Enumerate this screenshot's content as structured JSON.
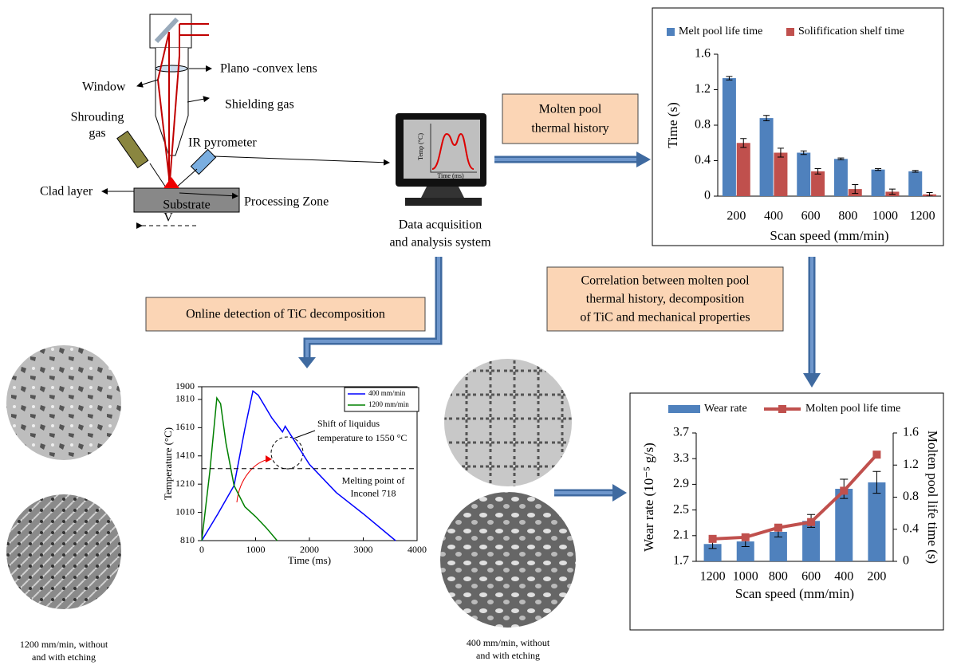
{
  "diagram": {
    "setup": {
      "lens": "Plano -convex lens",
      "window": "Window",
      "shielding_gas": "Shielding gas",
      "shrouding_gas": [
        "Shrouding",
        "gas"
      ],
      "pyrometer": "IR pyrometer",
      "clad_layer": "Clad layer",
      "processing_zone": "Processing Zone",
      "substrate": "Substrate",
      "velocity": "V"
    },
    "monitor": {
      "y_label": "Temp (°C)",
      "x_label": "Time (ms)",
      "caption": [
        "Data acquisition",
        "and analysis system"
      ]
    },
    "boxes": {
      "thermal_history": [
        "Molten pool",
        "thermal history"
      ],
      "online_detection": "Online detection of TiC decomposition",
      "correlation": [
        "Correlation between molten pool",
        "thermal history, decomposition",
        "of TiC and mechanical properties"
      ]
    },
    "captions": {
      "left": [
        "1200 mm/min, without",
        "and with etching"
      ],
      "right": [
        "400 mm/min, without",
        "and with etching"
      ]
    }
  },
  "chart_data": [
    {
      "type": "bar",
      "x_label": "Scan speed (mm/min)",
      "y_label": "Time (s)",
      "categories": [
        "200",
        "400",
        "600",
        "800",
        "1000",
        "1200"
      ],
      "series": [
        {
          "name": "Melt pool life time",
          "color": "#4f81bd",
          "values": [
            1.33,
            0.88,
            0.49,
            0.42,
            0.3,
            0.28
          ],
          "errors": [
            0.02,
            0.03,
            0.02,
            0.01,
            0.01,
            0.01
          ]
        },
        {
          "name": "Solifification shelf time",
          "color": "#c0504d",
          "values": [
            0.6,
            0.49,
            0.28,
            0.08,
            0.05,
            0.02
          ],
          "errors": [
            0.05,
            0.05,
            0.03,
            0.05,
            0.03,
            0.02
          ]
        }
      ],
      "ylim": [
        0,
        1.6
      ],
      "yticks": [
        0,
        0.4,
        0.8,
        1.2,
        1.6
      ]
    },
    {
      "type": "line",
      "x_label": "Time (ms)",
      "y_label": "Temperature (°C)",
      "series": [
        {
          "name": "400 mm/min",
          "color": "#0000ff",
          "x": [
            0,
            300,
            600,
            800,
            950,
            1050,
            1300,
            1500,
            1550,
            1650,
            2000,
            2500,
            3000,
            3600
          ],
          "values": [
            810,
            1000,
            1200,
            1600,
            1870,
            1840,
            1680,
            1580,
            1620,
            1560,
            1350,
            1150,
            1000,
            810
          ]
        },
        {
          "name": "1200 mm/min",
          "color": "#008000",
          "x": [
            0,
            150,
            280,
            350,
            450,
            600,
            800,
            1000,
            1200,
            1400
          ],
          "values": [
            810,
            1300,
            1820,
            1780,
            1500,
            1200,
            1050,
            980,
            900,
            810
          ]
        }
      ],
      "xlim": [
        0,
        4000
      ],
      "xticks": [
        0,
        1000,
        2000,
        3000,
        4000
      ],
      "ylim": [
        810,
        1900
      ],
      "yticks": [
        810,
        1010,
        1210,
        1410,
        1610,
        1810,
        1900
      ],
      "reference_line": {
        "value": 1320,
        "label": [
          "Melting point of",
          "Inconel 718"
        ]
      },
      "annotation": [
        "Shift of liquidus",
        "temperature to 1550 °C"
      ]
    },
    {
      "type": "combo",
      "x_label": "Scan speed (mm/min)",
      "y_label": "Wear rate (10⁻⁵ g/s)",
      "y2_label": "Molten pool life time (s)",
      "categories": [
        "1200",
        "1000",
        "800",
        "600",
        "400",
        "200"
      ],
      "series": [
        {
          "name": "Wear rate",
          "type": "bar",
          "color": "#4f81bd",
          "values": [
            1.97,
            2.01,
            2.16,
            2.33,
            2.83,
            2.93
          ],
          "errors": [
            0.07,
            0.08,
            0.08,
            0.1,
            0.15,
            0.17
          ]
        },
        {
          "name": "Molten pool life time",
          "type": "line",
          "axis": "y2",
          "color": "#c0504d",
          "values": [
            0.28,
            0.3,
            0.42,
            0.49,
            0.88,
            1.33
          ]
        }
      ],
      "ylim": [
        1.7,
        3.7
      ],
      "yticks": [
        1.7,
        2.1,
        2.5,
        2.9,
        3.3,
        3.7
      ],
      "y2lim": [
        0,
        1.6
      ],
      "y2ticks": [
        0,
        0.4,
        0.8,
        1.2,
        1.6
      ]
    }
  ]
}
